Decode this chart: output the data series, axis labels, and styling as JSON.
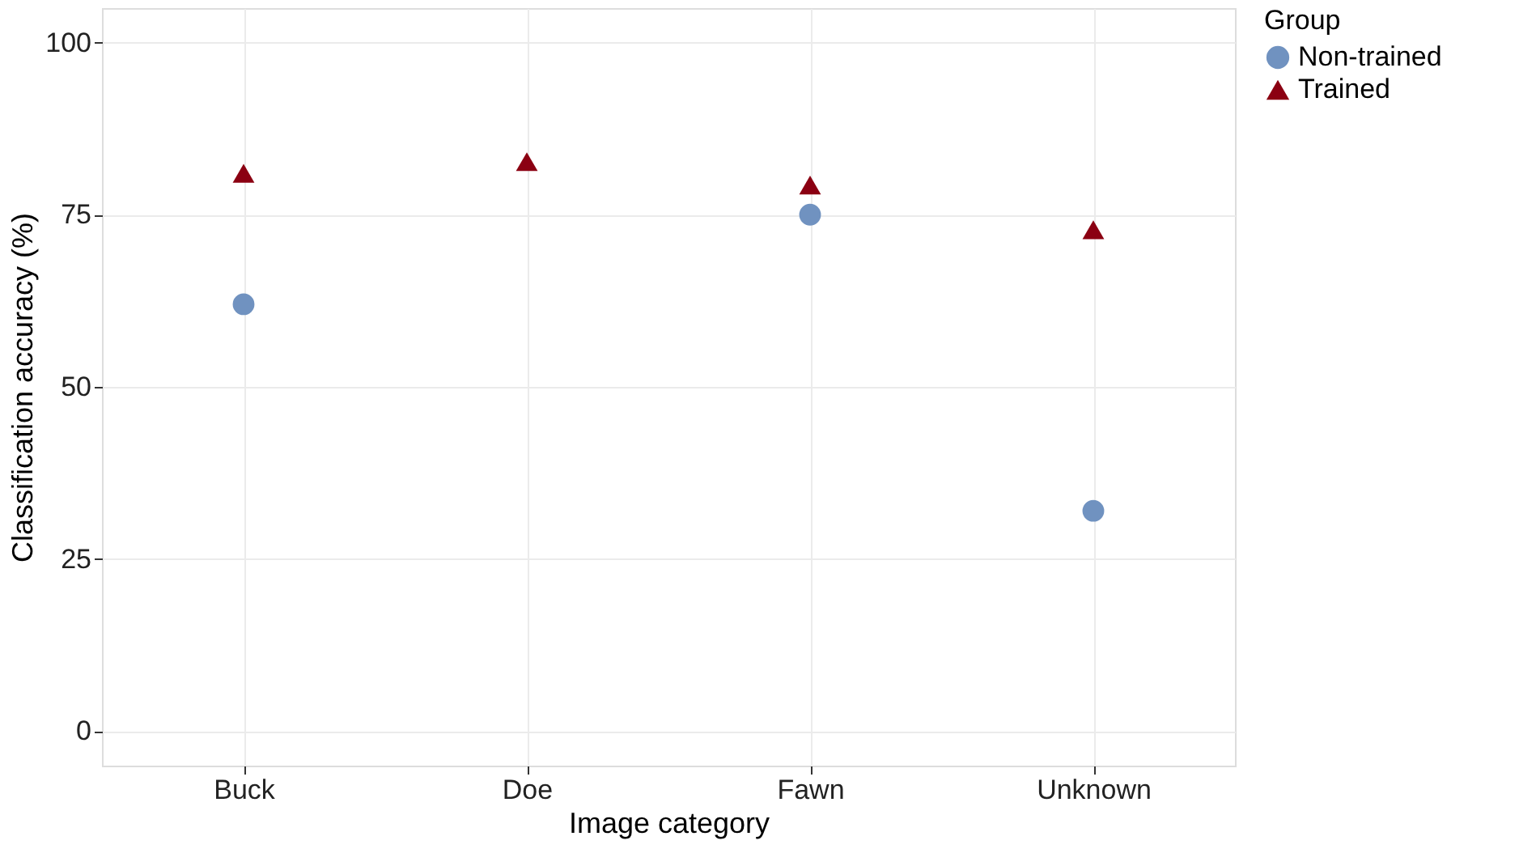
{
  "chart_data": {
    "type": "scatter",
    "xlabel": "Image category",
    "ylabel": "Classification accuracy (%)",
    "legend_title": "Group",
    "categories": [
      "Buck",
      "Doe",
      "Fawn",
      "Unknown"
    ],
    "series": [
      {
        "name": "Non-trained",
        "color": "#7092c0",
        "marker": "circle",
        "values": [
          62.0,
          null,
          75.0,
          32.0
        ]
      },
      {
        "name": "Trained",
        "color": "#8b0012",
        "marker": "triangle",
        "values": [
          81.0,
          82.7,
          79.3,
          72.8
        ]
      }
    ],
    "ylim": [
      -5,
      105
    ],
    "yticks": [
      0,
      25,
      50,
      75,
      100
    ],
    "grid": true,
    "legend": "right"
  }
}
